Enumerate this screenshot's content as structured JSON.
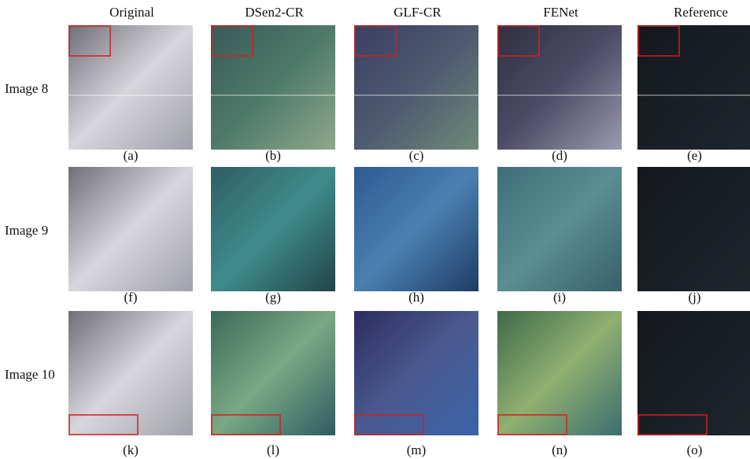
{
  "columns": [
    "Original",
    "DSen2-CR",
    "GLF-CR",
    "FENet",
    "Reference"
  ],
  "rows": [
    {
      "label": "Image 8",
      "captions": [
        "(a)",
        "(b)",
        "(c)",
        "(d)",
        "(e)"
      ]
    },
    {
      "label": "Image 9",
      "captions": [
        "(f)",
        "(g)",
        "(h)",
        "(i)",
        "(j)"
      ]
    },
    {
      "label": "Image 10",
      "captions": [
        "(k)",
        "(l)",
        "(m)",
        "(n)",
        "(o)"
      ]
    }
  ]
}
